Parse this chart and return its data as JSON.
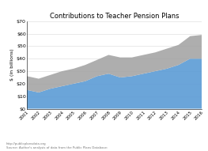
{
  "title": "Contributions to Teacher Pension Plans",
  "years": [
    2001,
    2002,
    2003,
    2004,
    2005,
    2006,
    2007,
    2008,
    2009,
    2010,
    2011,
    2012,
    2013,
    2014,
    2015,
    2016
  ],
  "employer": [
    15,
    13,
    16,
    18,
    20,
    22,
    26,
    28,
    25,
    26,
    28,
    30,
    32,
    35,
    40,
    40
  ],
  "member": [
    11,
    11,
    11,
    12,
    12,
    13,
    13,
    15,
    16,
    15,
    15,
    15,
    16,
    16,
    18,
    19
  ],
  "employer_color": "#5b9bd5",
  "member_color": "#a5a5a5",
  "ylabel": "$ (in billions)",
  "ylim": [
    0,
    70
  ],
  "yticks": [
    0,
    10,
    20,
    30,
    40,
    50,
    60,
    70
  ],
  "ytick_labels": [
    "$0",
    "$10",
    "$20",
    "$30",
    "$40",
    "$50",
    "$60",
    "$70"
  ],
  "bg_color": "#ffffff",
  "source_line1": "Source: Author's analysis of data from the Public Plans Database:",
  "source_line2": "http://publicplansdata.org"
}
